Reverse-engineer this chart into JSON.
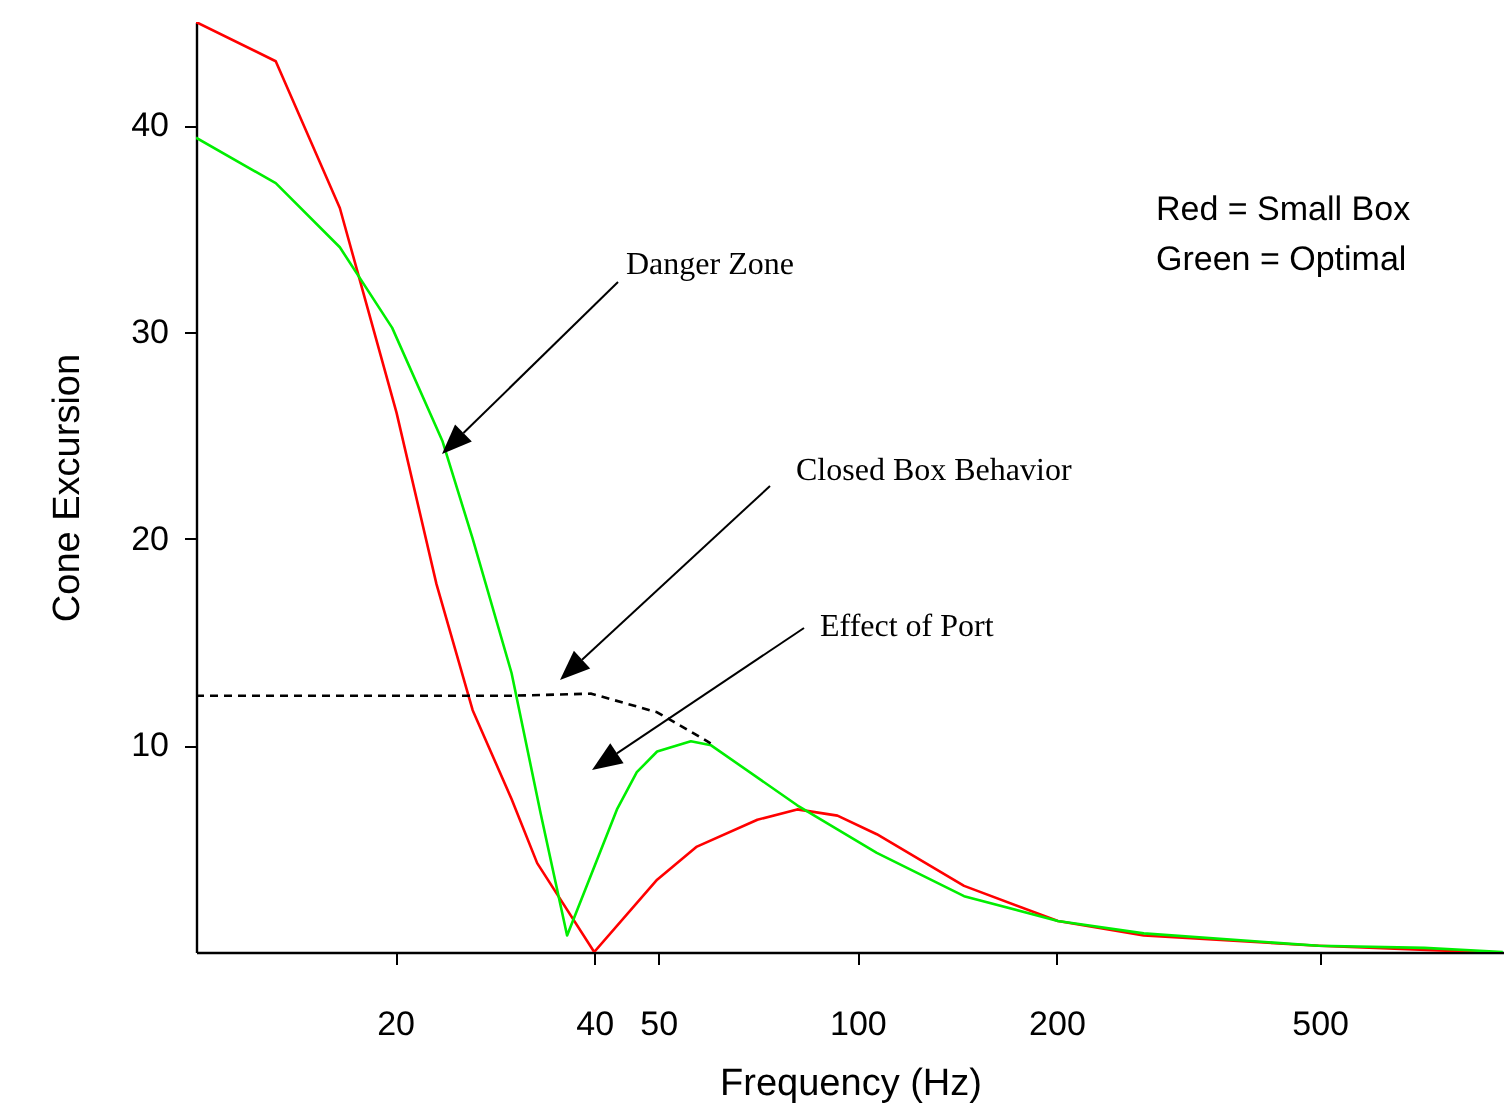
{
  "chart_data": {
    "type": "line",
    "xlabel": "Frequency (Hz)",
    "ylabel": "Cone Excursion",
    "log": "x",
    "grid": false,
    "xlim": [
      10,
      950
    ],
    "xticks": [
      20,
      40,
      50,
      100,
      200,
      500
    ],
    "ylim": [
      0,
      45
    ],
    "yticks": [
      10,
      20,
      30,
      40
    ],
    "annotations": [
      "Red = Small Box",
      "Green = Optimal",
      "Danger Zone",
      "Closed Box Behavior",
      "Effect of Port"
    ],
    "series": [
      {
        "color": "#ff0000",
        "x": [
          10,
          13.2,
          16.5,
          20.1,
          23.1,
          26.2,
          30,
          32.8,
          40,
          49.8,
          57.2,
          70.6,
          81.1,
          93.3,
          107,
          145,
          201,
          271,
          498,
          870
        ],
        "values": [
          45,
          43.1,
          36,
          26.1,
          17.8,
          11.7,
          7.4,
          4.3,
          0,
          3.5,
          5.1,
          6.4,
          6.9,
          6.6,
          5.7,
          3.2,
          1.5,
          0.8,
          0.3,
          0
        ]
      },
      {
        "color": "#00ee00",
        "x": [
          10,
          13.2,
          16.5,
          19.8,
          23.6,
          26.2,
          30,
          33.2,
          36.4,
          43.3,
          46.4,
          49.8,
          56,
          60.1,
          81.1,
          107,
          145,
          201,
          271,
          498,
          720,
          946
        ],
        "values": [
          39.4,
          37.2,
          34.1,
          30.2,
          24.7,
          20,
          13.5,
          6.7,
          0.8,
          6.9,
          8.7,
          9.7,
          10.2,
          10,
          7.1,
          4.8,
          2.7,
          1.5,
          0.9,
          0.3,
          0.2,
          0
        ]
      },
      {
        "color": "#000000",
        "line_style": "dashed",
        "x": [
          10,
          30,
          39.6,
          49.8,
          60
        ],
        "values": [
          12.4,
          12.4,
          12.5,
          11.6,
          10.1
        ]
      }
    ]
  }
}
